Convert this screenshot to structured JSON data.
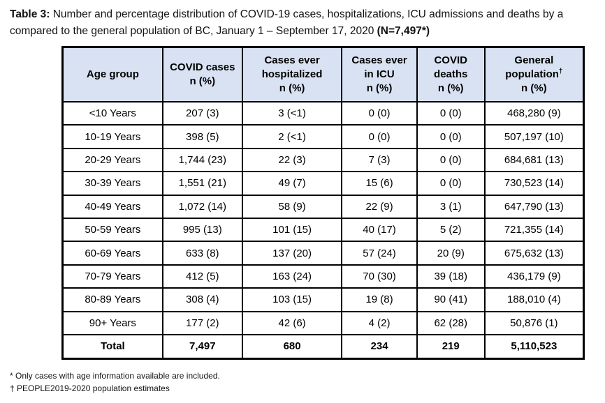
{
  "page": {
    "background": "#ffffff",
    "text_color": "#000000"
  },
  "title": {
    "line1_bold": "Table 3:",
    "line1_rest": " Number and percentage distribution of COVID-19 cases, hospitalizations, ICU admissions and deaths by a",
    "line2_rest": "compared to the general population of BC, January 1 – September 17, 2020 ",
    "line2_bold": "(N=7,497*)"
  },
  "table": {
    "header_bg": "#d9e2f3",
    "border_color": "#000000",
    "columns": [
      {
        "id": "age-group",
        "lines": [
          "Age group"
        ],
        "width_pct": 19.2
      },
      {
        "id": "covid-cases",
        "lines": [
          "COVID cases",
          "n (%)"
        ],
        "width_pct": 15.3
      },
      {
        "id": "cases-hospitalized",
        "lines": [
          "Cases ever",
          "hospitalized",
          "n (%)"
        ],
        "width_pct": 19.1
      },
      {
        "id": "cases-icu",
        "lines": [
          "Cases ever",
          "in ICU",
          "n (%)"
        ],
        "width_pct": 14.4
      },
      {
        "id": "covid-deaths",
        "lines": [
          "COVID",
          "deaths",
          "n (%)"
        ],
        "width_pct": 13.0
      },
      {
        "id": "general-population",
        "lines": [
          "General",
          "population†",
          "n (%)"
        ],
        "width_pct": 19.0
      }
    ],
    "rows": [
      [
        "<10 Years",
        "207 (3)",
        "3 (<1)",
        "0 (0)",
        "0 (0)",
        "468,280 (9)"
      ],
      [
        "10-19 Years",
        "398 (5)",
        "2 (<1)",
        "0 (0)",
        "0 (0)",
        "507,197 (10)"
      ],
      [
        "20-29 Years",
        "1,744 (23)",
        "22 (3)",
        "7 (3)",
        "0 (0)",
        "684,681 (13)"
      ],
      [
        "30-39 Years",
        "1,551 (21)",
        "49 (7)",
        "15 (6)",
        "0 (0)",
        "730,523 (14)"
      ],
      [
        "40-49 Years",
        "1,072 (14)",
        "58 (9)",
        "22 (9)",
        "3 (1)",
        "647,790 (13)"
      ],
      [
        "50-59 Years",
        "995 (13)",
        "101 (15)",
        "40 (17)",
        "5 (2)",
        "721,355 (14)"
      ],
      [
        "60-69 Years",
        "633 (8)",
        "137 (20)",
        "57 (24)",
        "20 (9)",
        "675,632 (13)"
      ],
      [
        "70-79 Years",
        "412 (5)",
        "163 (24)",
        "70 (30)",
        "39 (18)",
        "436,179 (9)"
      ],
      [
        "80-89 Years",
        "308 (4)",
        "103 (15)",
        "19 (8)",
        "90 (41)",
        "188,010 (4)"
      ],
      [
        "90+ Years",
        "177 (2)",
        "42 (6)",
        "4 (2)",
        "62 (28)",
        "50,876 (1)"
      ]
    ],
    "total_row": [
      "Total",
      "7,497",
      "680",
      "234",
      "219",
      "5,110,523"
    ]
  },
  "footnotes": [
    "* Only cases with age information available are included.",
    "† PEOPLE2019-2020 population estimates"
  ]
}
